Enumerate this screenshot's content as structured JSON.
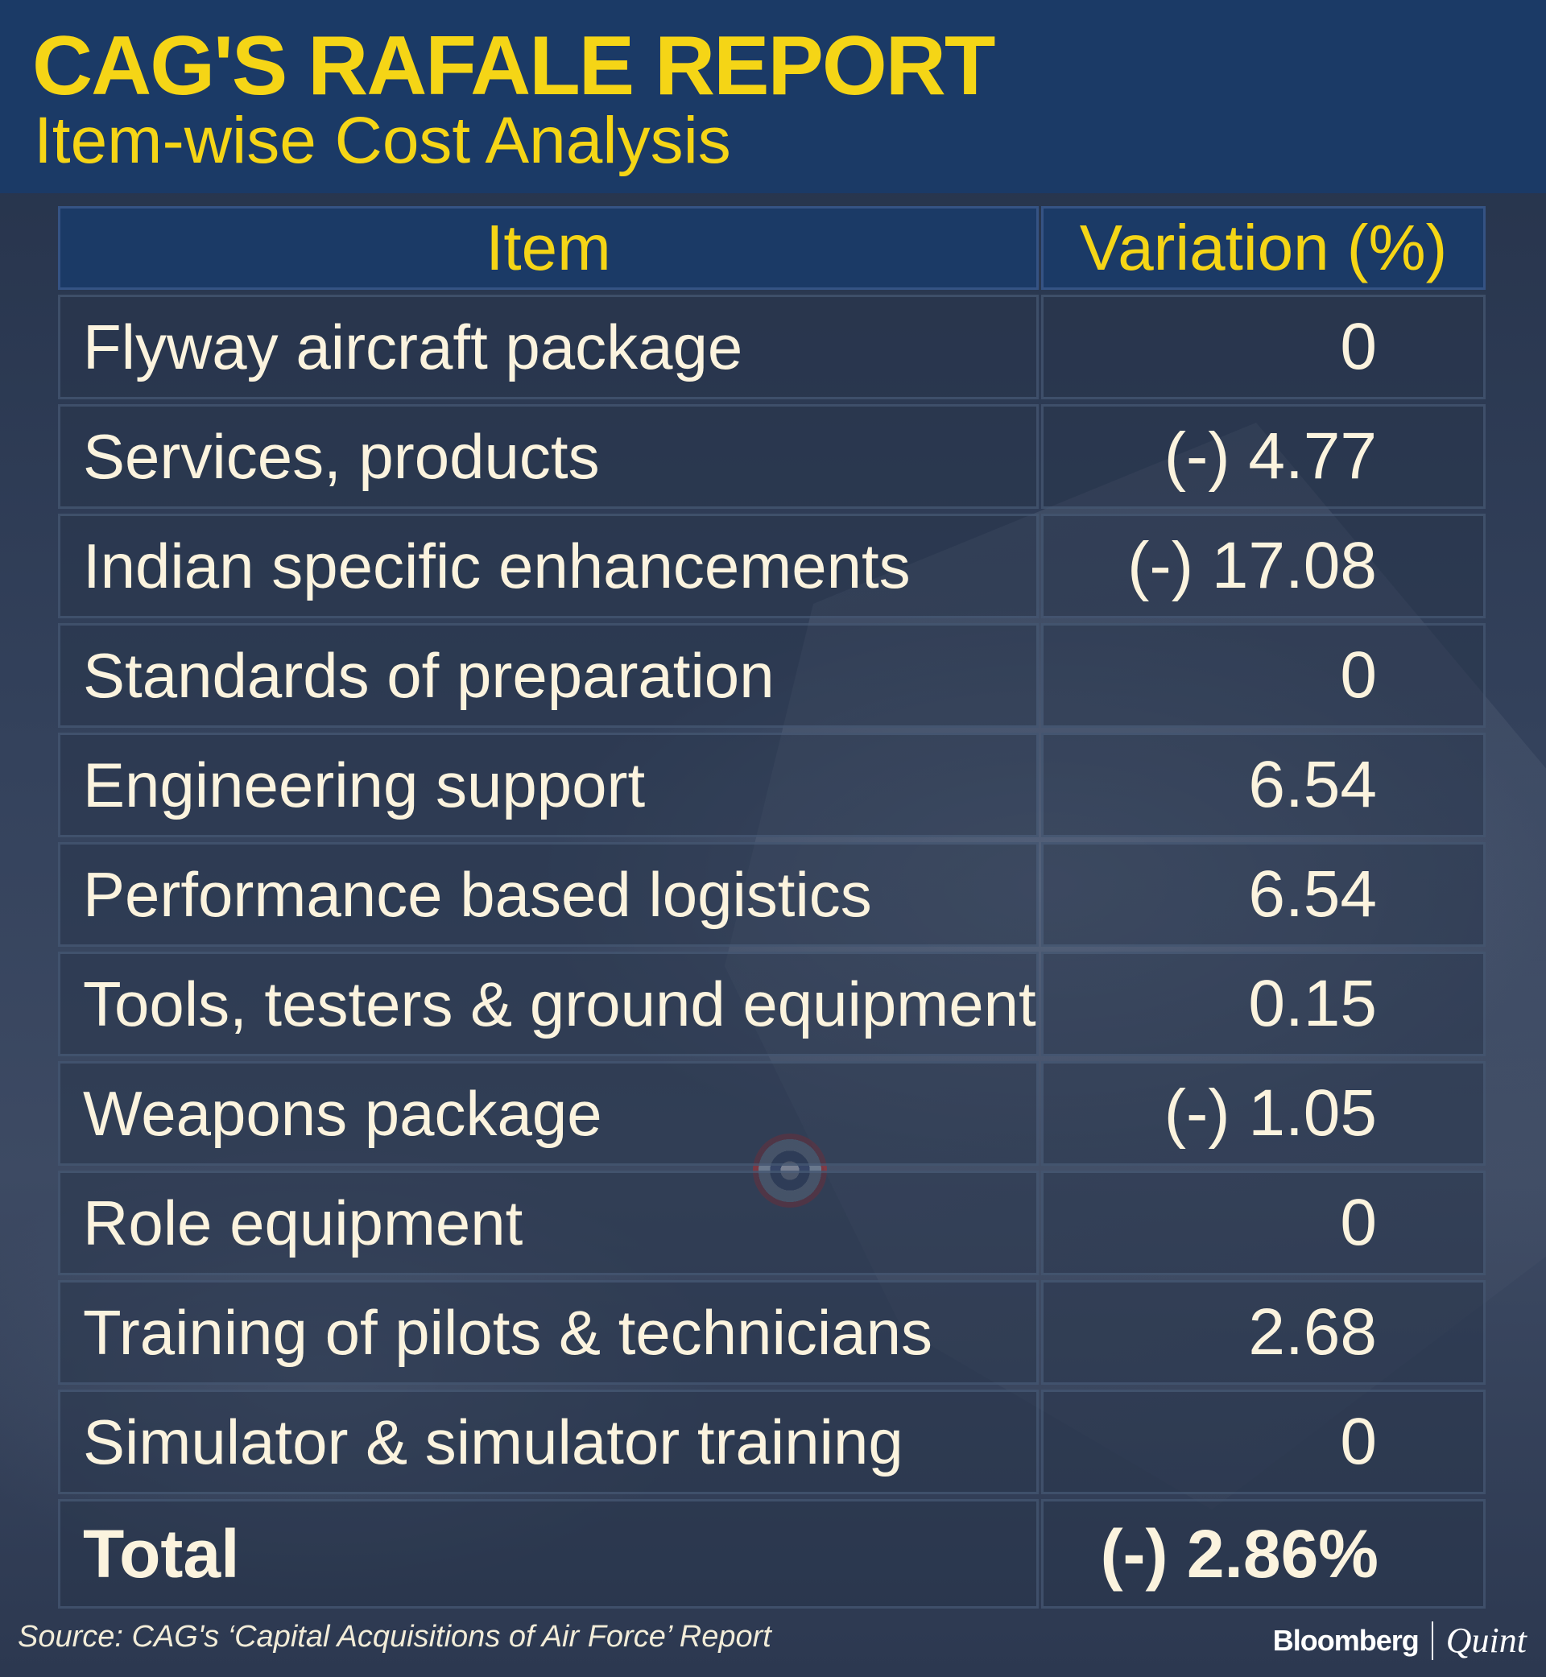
{
  "header": {
    "title": "CAG'S RAFALE REPORT",
    "subtitle": "Item-wise Cost Analysis"
  },
  "table": {
    "columns": [
      "Item",
      "Variation (%)"
    ],
    "rows": [
      {
        "item": "Flyway aircraft package",
        "variation": "0"
      },
      {
        "item": "Services, products",
        "variation": "(-) 4.77"
      },
      {
        "item": "Indian specific enhancements",
        "variation": "(-) 17.08"
      },
      {
        "item": "Standards of preparation",
        "variation": "0"
      },
      {
        "item": "Engineering support",
        "variation": "6.54"
      },
      {
        "item": "Performance based logistics",
        "variation": "6.54"
      },
      {
        "item": "Tools, testers & ground equipment",
        "variation": "0.15"
      },
      {
        "item": "Weapons package",
        "variation": "(-) 1.05"
      },
      {
        "item": "Role equipment",
        "variation": "0"
      },
      {
        "item": "Training of pilots & technicians",
        "variation": "2.68"
      },
      {
        "item": "Simulator & simulator training",
        "variation": "0"
      }
    ],
    "total": {
      "item": "Total",
      "variation": "(-) 2.86%"
    }
  },
  "footer": {
    "source": "Source: CAG's ‘Capital Acquisitions of Air Force’ Report",
    "brand_left": "Bloomberg",
    "brand_right": "Quint"
  },
  "colors": {
    "header_bg": "#1b3a66",
    "accent_yellow": "#f5d516",
    "text_cream": "#fbf3de"
  }
}
